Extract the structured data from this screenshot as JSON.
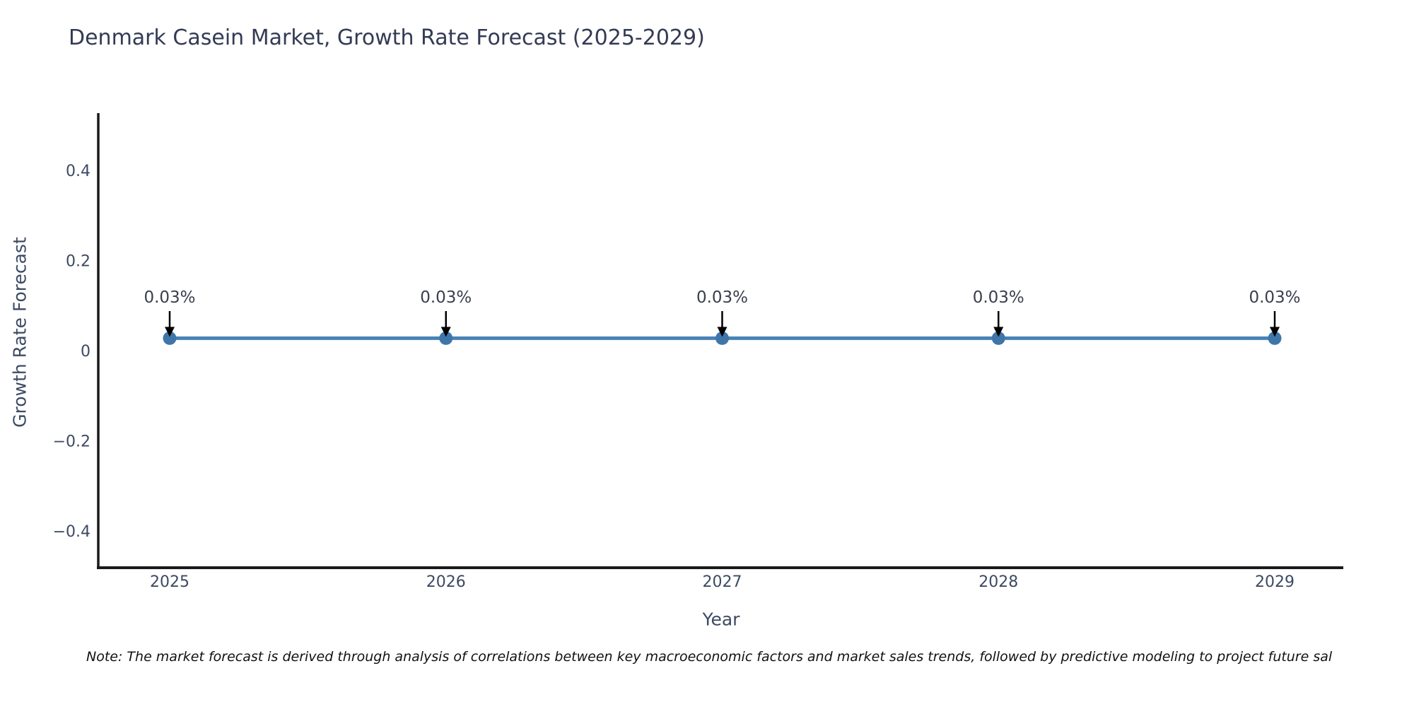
{
  "title": "Denmark Casein Market, Growth Rate Forecast (2025-2029)",
  "note": "Note: The market forecast is derived through analysis of correlations between key macroeconomic factors and market sales trends, followed by predictive modeling to project future sal",
  "colors": {
    "background": "#ffffff",
    "title_text": "#333b54",
    "axis_text": "#3d4a63",
    "spine": "#1a1a1a",
    "line": "#4682b4",
    "marker": "#3e76aa",
    "annotation_text": "#3a3f4e",
    "arrow": "#000000"
  },
  "chart_data": {
    "type": "line",
    "title": "Denmark Casein Market, Growth Rate Forecast (2025-2029)",
    "xlabel": "Year",
    "ylabel": "Growth Rate Forecast",
    "x": [
      "2025",
      "2026",
      "2027",
      "2028",
      "2029"
    ],
    "values": [
      0.03,
      0.03,
      0.03,
      0.03,
      0.03
    ],
    "annotations": [
      "0.03%",
      "0.03%",
      "0.03%",
      "0.03%",
      "0.03%"
    ],
    "yticks": [
      {
        "label": "0.4",
        "value": 0.4
      },
      {
        "label": "0.2",
        "value": 0.2
      },
      {
        "label": "0",
        "value": 0
      },
      {
        "label": "−0.2",
        "value": -0.2
      },
      {
        "label": "−0.4",
        "value": -0.4
      }
    ],
    "ylim": [
      -0.48,
      0.53
    ],
    "grid": false,
    "legend": "none",
    "marker_style": "circle"
  }
}
